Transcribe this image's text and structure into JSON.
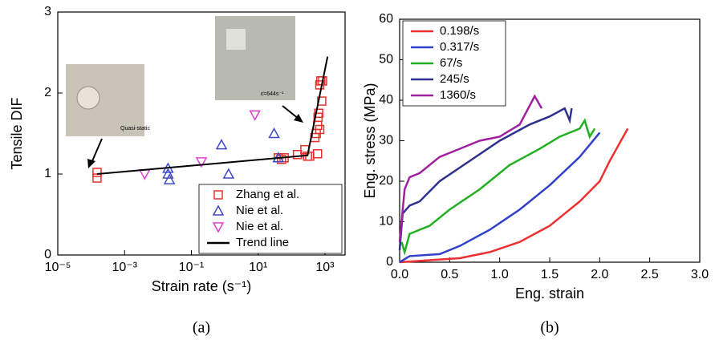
{
  "chart_data": [
    {
      "type": "scatter",
      "caption": "(a)",
      "xlabel": "Strain rate (s⁻¹)",
      "ylabel": "Tensile DIF",
      "xscale": "log",
      "xlim": [
        1e-05,
        4000
      ],
      "ylim": [
        0,
        3
      ],
      "xticks": [
        {
          "value": 1e-05,
          "label": "10⁻⁵"
        },
        {
          "value": 0.001,
          "label": "10⁻³"
        },
        {
          "value": 0.1,
          "label": "10⁻¹"
        },
        {
          "value": 10,
          "label": "10¹"
        },
        {
          "value": 1000,
          "label": "10³"
        }
      ],
      "yticks": [
        0,
        1,
        2,
        3
      ],
      "legend": "lower right",
      "annotations": [
        "Quasi-static",
        "ε̇=644s⁻¹"
      ],
      "series": [
        {
          "name": "Zhang et al.",
          "color": "#e8302c",
          "marker": "square",
          "x": [
            0.00015,
            0.00015,
            40,
            50,
            60,
            150,
            250,
            300,
            350,
            500,
            550,
            600,
            620,
            650,
            700,
            750,
            800,
            850,
            700,
            600
          ],
          "values": [
            1.02,
            0.95,
            1.2,
            1.18,
            1.2,
            1.24,
            1.3,
            1.22,
            1.22,
            1.45,
            1.5,
            1.6,
            1.7,
            1.75,
            2.1,
            2.15,
            1.9,
            2.15,
            1.55,
            1.25
          ]
        },
        {
          "name": "Nie et al.",
          "color": "#4048c8",
          "marker": "triangle-up",
          "x": [
            0.02,
            0.02,
            0.022,
            0.8,
            1.3,
            30,
            40
          ],
          "values": [
            1.07,
            1.0,
            0.93,
            1.36,
            1.0,
            1.5,
            1.2
          ]
        },
        {
          "name": "Nie et al.",
          "color": "#e040d0",
          "marker": "triangle-down",
          "x": [
            0.004,
            0.2,
            8
          ],
          "values": [
            1.0,
            1.15,
            1.73
          ]
        },
        {
          "name": "Trend line",
          "color": "#000000",
          "marker": "line",
          "x": [
            0.00015,
            300,
            1200
          ],
          "values": [
            1.0,
            1.23,
            2.45
          ]
        }
      ]
    },
    {
      "type": "line",
      "caption": "(b)",
      "xlabel": "Eng. strain",
      "ylabel": "Eng. stress (MPa)",
      "xlim": [
        0,
        3
      ],
      "ylim": [
        0,
        60
      ],
      "xticks": [
        {
          "value": 0,
          "label": "0.0"
        },
        0.5,
        {
          "value": 1,
          "label": "1.0"
        },
        1.5,
        {
          "value": 2,
          "label": "2.0"
        },
        2.5,
        {
          "value": 3,
          "label": "3.0"
        }
      ],
      "yticks": [
        0,
        10,
        20,
        30,
        40,
        50,
        60
      ],
      "legend": "upper left",
      "series": [
        {
          "name": "0.198/s",
          "color": "#f03030",
          "x": [
            0,
            0.3,
            0.6,
            0.9,
            1.2,
            1.5,
            1.8,
            2.0,
            2.1,
            2.28
          ],
          "values": [
            0,
            0.5,
            1,
            2.5,
            5,
            9,
            15,
            20,
            25,
            33
          ]
        },
        {
          "name": "0.317/s",
          "color": "#3040c8",
          "x": [
            0,
            0.1,
            0.4,
            0.6,
            0.9,
            1.2,
            1.5,
            1.8,
            2.0
          ],
          "values": [
            0,
            1.5,
            2,
            4,
            8,
            13,
            19,
            26,
            32
          ]
        },
        {
          "name": "67/s",
          "color": "#20b020",
          "x": [
            0.02,
            0.05,
            0.1,
            0.3,
            0.5,
            0.8,
            1.1,
            1.4,
            1.6,
            1.8,
            1.85,
            1.9,
            1.95
          ],
          "values": [
            5,
            2.5,
            7,
            9,
            13,
            18,
            24,
            28,
            31,
            33,
            35,
            31,
            33
          ]
        },
        {
          "name": "245/s",
          "color": "#303090",
          "x": [
            0,
            0.03,
            0.1,
            0.2,
            0.4,
            0.7,
            1.0,
            1.3,
            1.5,
            1.65,
            1.7,
            1.72
          ],
          "values": [
            3,
            12,
            14,
            15,
            20,
            25,
            30,
            34,
            36,
            38,
            35,
            38
          ]
        },
        {
          "name": "1360/s",
          "color": "#a020a0",
          "x": [
            0,
            0.05,
            0.1,
            0.2,
            0.4,
            0.6,
            0.8,
            1.0,
            1.2,
            1.35,
            1.42
          ],
          "values": [
            5,
            18,
            21,
            22,
            26,
            28,
            30,
            31,
            34,
            41,
            38
          ]
        }
      ]
    }
  ]
}
